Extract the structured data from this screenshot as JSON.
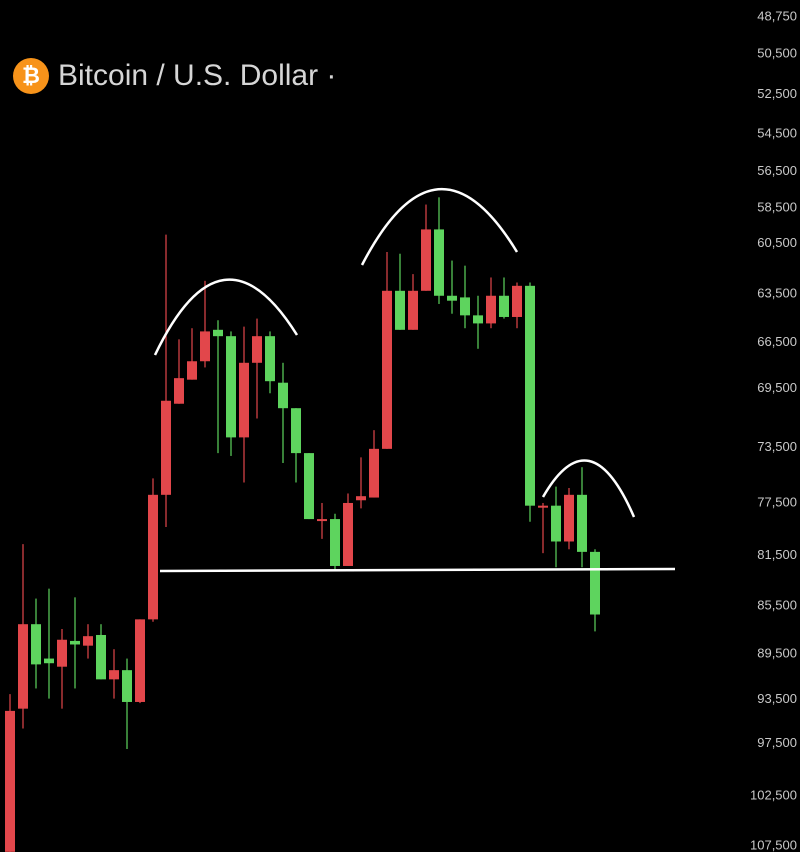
{
  "chart_data": {
    "type": "candlestick",
    "title": "Bitcoin / U.S. Dollar ·",
    "symbol_icon": "₿",
    "log_scale": true,
    "y_inverted": true,
    "up_color": "#5ed45e",
    "down_color": "#e2474b",
    "ylim": [
      48750,
      107500
    ],
    "yticks": [
      {
        "value": 48750,
        "label": "48,750"
      },
      {
        "value": 50500,
        "label": "50,500"
      },
      {
        "value": 52500,
        "label": "52,500"
      },
      {
        "value": 54500,
        "label": "54,500"
      },
      {
        "value": 56500,
        "label": "56,500"
      },
      {
        "value": 58500,
        "label": "58,500"
      },
      {
        "value": 60500,
        "label": "60,500"
      },
      {
        "value": 63500,
        "label": "63,500"
      },
      {
        "value": 66500,
        "label": "66,500"
      },
      {
        "value": 69500,
        "label": "69,500"
      },
      {
        "value": 73500,
        "label": "73,500"
      },
      {
        "value": 77500,
        "label": "77,500"
      },
      {
        "value": 81500,
        "label": "81,500"
      },
      {
        "value": 85500,
        "label": "85,500"
      },
      {
        "value": 89500,
        "label": "89,500"
      },
      {
        "value": 93500,
        "label": "93,500"
      },
      {
        "value": 97500,
        "label": "97,500"
      },
      {
        "value": 102500,
        "label": "102,500"
      },
      {
        "value": 107500,
        "label": "107,500"
      }
    ],
    "open": [
      108100,
      94300,
      87000,
      89900,
      90600,
      88400,
      88800,
      87900,
      91700,
      90900,
      93700,
      86600,
      76900,
      70500,
      68900,
      67700,
      65700,
      66100,
      72800,
      67800,
      66100,
      69100,
      70800,
      73900,
      78800,
      78700,
      82300,
      77300,
      77100,
      73600,
      63300,
      65700,
      63300,
      59700,
      63600,
      63700,
      64800,
      65300,
      63600,
      64900,
      63000,
      77800,
      77700,
      80400,
      76900,
      81200
    ],
    "high": [
      108100,
      96100,
      92500,
      93400,
      94300,
      92500,
      89900,
      91700,
      93400,
      98000,
      93800,
      86800,
      79300,
      70500,
      68900,
      68100,
      73900,
      74100,
      76000,
      71500,
      69800,
      74600,
      76000,
      78700,
      80200,
      82700,
      82300,
      77900,
      77100,
      73600,
      65700,
      65700,
      63300,
      64100,
      64700,
      65600,
      66900,
      65600,
      65000,
      65600,
      78900,
      81300,
      82400,
      81000,
      82400,
      87600
    ],
    "low": [
      93000,
      80600,
      84900,
      84100,
      87400,
      84800,
      87000,
      87000,
      89100,
      89900,
      86600,
      75700,
      60000,
      66300,
      65600,
      62700,
      65100,
      65800,
      65500,
      65000,
      65800,
      67800,
      70800,
      73900,
      77500,
      78300,
      76800,
      74200,
      72300,
      61000,
      61100,
      62300,
      58300,
      57900,
      61500,
      61800,
      63600,
      62500,
      62500,
      62800,
      62800,
      77500,
      76300,
      76400,
      74900,
      81000
    ],
    "close": [
      94500,
      87000,
      90400,
      90300,
      88300,
      88700,
      88000,
      91700,
      90900,
      93700,
      86600,
      76900,
      70300,
      68800,
      67700,
      65800,
      66100,
      72800,
      67800,
      66100,
      69000,
      70800,
      73900,
      78700,
      78700,
      82300,
      77500,
      77000,
      73600,
      63300,
      65700,
      63300,
      59700,
      63600,
      63900,
      64800,
      65300,
      63600,
      64900,
      63000,
      77700,
      77700,
      80400,
      76900,
      81200,
      86200
    ]
  }
}
